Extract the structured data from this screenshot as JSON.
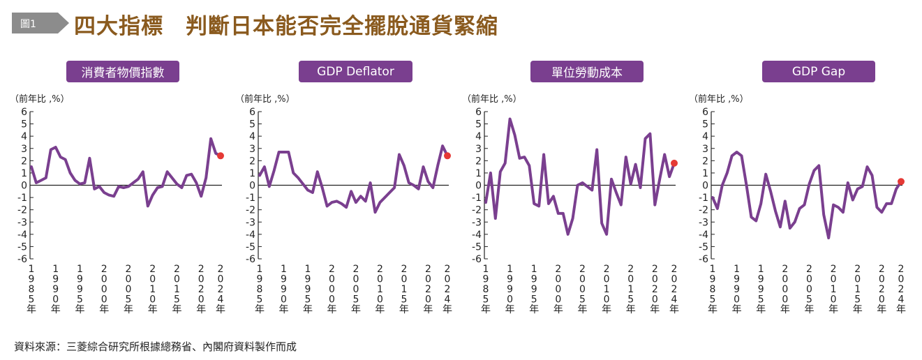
{
  "figure_label": "圖1",
  "headline": "四大指標　判斷日本能否完全擺脫通貨緊縮",
  "source": "資料來源：三菱綜合研究所根據總務省、內閣府資料製作而成",
  "colors": {
    "line": "#7a3f8f",
    "accent": "#e53935",
    "headline": "#8a5a1e",
    "tag": "#8c8c8c"
  },
  "chart_data": [
    {
      "type": "line",
      "title": "消費者物價指數",
      "unit_label": "（前年比 ,%）",
      "ylim": [
        -6,
        6
      ],
      "yticks": [
        "6",
        "5",
        "4",
        "3",
        "2",
        "1",
        "0",
        "-1",
        "-2",
        "-3",
        "-4",
        "-5",
        "-6"
      ],
      "xlim": [
        1985,
        2024
      ],
      "xtick_labels": [
        "1985年",
        "1990年",
        "1995年",
        "2000年",
        "2005年",
        "2010年",
        "2015年",
        "2020年",
        "2024年"
      ],
      "xtick_values": [
        1985,
        1990,
        1995,
        2000,
        2005,
        2010,
        2015,
        2020,
        2024
      ],
      "x": [
        1985,
        1986,
        1987,
        1988,
        1989,
        1990,
        1991,
        1992,
        1993,
        1994,
        1995,
        1996,
        1997,
        1998,
        1999,
        2000,
        2001,
        2002,
        2003,
        2004,
        2005,
        2006,
        2007,
        2008,
        2009,
        2010,
        2011,
        2012,
        2013,
        2014,
        2015,
        2016,
        2017,
        2018,
        2019,
        2020,
        2021,
        2022,
        2023,
        2024
      ],
      "y": [
        1.5,
        0.2,
        0.4,
        0.6,
        2.9,
        3.1,
        2.3,
        2.1,
        1.0,
        0.4,
        0.1,
        0.2,
        2.2,
        -0.3,
        -0.1,
        -0.6,
        -0.8,
        -0.9,
        -0.1,
        -0.2,
        -0.1,
        0.2,
        0.5,
        1.1,
        -1.7,
        -0.8,
        -0.2,
        -0.1,
        1.1,
        0.6,
        0.1,
        -0.2,
        0.8,
        0.9,
        0.2,
        -0.9,
        0.6,
        3.8,
        2.6,
        2.4
      ],
      "highlight": {
        "x": 2024,
        "y": 2.4
      }
    },
    {
      "type": "line",
      "title": "GDP Deflator",
      "unit_label": "（前年比 ,%）",
      "ylim": [
        -6,
        6
      ],
      "yticks": [
        "6",
        "5",
        "4",
        "3",
        "2",
        "1",
        "0",
        "-1",
        "-2",
        "-3",
        "-4",
        "-5",
        "-6"
      ],
      "xlim": [
        1985,
        2024
      ],
      "xtick_labels": [
        "1985年",
        "1990年",
        "1995年",
        "2000年",
        "2005年",
        "2010年",
        "2015年",
        "2020年",
        "2024年"
      ],
      "xtick_values": [
        1985,
        1990,
        1995,
        2000,
        2005,
        2010,
        2015,
        2020,
        2024
      ],
      "x": [
        1985,
        1986,
        1987,
        1988,
        1989,
        1990,
        1991,
        1992,
        1993,
        1994,
        1995,
        1996,
        1997,
        1998,
        1999,
        2000,
        2001,
        2002,
        2003,
        2004,
        2005,
        2006,
        2007,
        2008,
        2009,
        2010,
        2011,
        2012,
        2013,
        2014,
        2015,
        2016,
        2017,
        2018,
        2019,
        2020,
        2021,
        2022,
        2023,
        2024
      ],
      "y": [
        0.8,
        1.5,
        -0.1,
        1.2,
        2.7,
        2.7,
        2.7,
        1.0,
        0.6,
        0.1,
        -0.4,
        -0.6,
        1.1,
        -0.2,
        -1.7,
        -1.4,
        -1.3,
        -1.5,
        -1.8,
        -0.5,
        -1.4,
        -0.9,
        -1.3,
        0.2,
        -2.2,
        -1.4,
        -1.0,
        -0.6,
        -0.2,
        2.5,
        1.6,
        0.2,
        0.0,
        -0.3,
        1.5,
        0.3,
        -0.2,
        1.6,
        3.2,
        2.4
      ],
      "highlight": {
        "x": 2024,
        "y": 2.4
      }
    },
    {
      "type": "line",
      "title": "單位勞動成本",
      "unit_label": "（前年比 ,%）",
      "ylim": [
        -6,
        6
      ],
      "yticks": [
        "6",
        "5",
        "4",
        "3",
        "2",
        "1",
        "0",
        "-1",
        "-2",
        "-3",
        "-4",
        "-5",
        "-6"
      ],
      "xlim": [
        1985,
        2024
      ],
      "xtick_labels": [
        "1985年",
        "1990年",
        "1995年",
        "2000年",
        "2005年",
        "2010年",
        "2015年",
        "2020年",
        "2024年"
      ],
      "xtick_values": [
        1985,
        1990,
        1995,
        2000,
        2005,
        2010,
        2015,
        2020,
        2024
      ],
      "x": [
        1985,
        1986,
        1987,
        1988,
        1989,
        1990,
        1991,
        1992,
        1993,
        1994,
        1995,
        1996,
        1997,
        1998,
        1999,
        2000,
        2001,
        2002,
        2003,
        2004,
        2005,
        2006,
        2007,
        2008,
        2009,
        2010,
        2011,
        2012,
        2013,
        2014,
        2015,
        2016,
        2017,
        2018,
        2019,
        2020,
        2021,
        2022,
        2023,
        2024
      ],
      "y": [
        -1.4,
        1.0,
        -2.7,
        1.1,
        1.8,
        5.4,
        4.1,
        2.2,
        2.3,
        1.6,
        -1.5,
        -1.7,
        2.5,
        -1.5,
        -0.9,
        -2.3,
        -2.3,
        -4.0,
        -2.7,
        0.0,
        0.2,
        -0.1,
        -0.4,
        2.9,
        -3.1,
        -4.0,
        0.5,
        -0.6,
        -1.6,
        2.3,
        0.1,
        1.7,
        -0.2,
        3.8,
        4.2,
        -1.6,
        0.5,
        2.5,
        0.7,
        1.8
      ],
      "highlight": {
        "x": 2024,
        "y": 1.8
      }
    },
    {
      "type": "line",
      "title": "GDP Gap",
      "unit_label": "（前年比 ,%）",
      "ylim": [
        -6,
        6
      ],
      "yticks": [
        "6",
        "5",
        "4",
        "3",
        "2",
        "1",
        "0",
        "-1",
        "-2",
        "-3",
        "-4",
        "-5",
        "-6"
      ],
      "xlim": [
        1985,
        2024
      ],
      "xtick_labels": [
        "1985年",
        "1990年",
        "1995年",
        "2000年",
        "2005年",
        "2010年",
        "2015年",
        "2020年",
        "2024年"
      ],
      "xtick_values": [
        1985,
        1990,
        1995,
        2000,
        2005,
        2010,
        2015,
        2020,
        2024
      ],
      "x": [
        1985,
        1986,
        1987,
        1988,
        1989,
        1990,
        1991,
        1992,
        1993,
        1994,
        1995,
        1996,
        1997,
        1998,
        1999,
        2000,
        2001,
        2002,
        2003,
        2004,
        2005,
        2006,
        2007,
        2008,
        2009,
        2010,
        2011,
        2012,
        2013,
        2014,
        2015,
        2016,
        2017,
        2018,
        2019,
        2020,
        2021,
        2022,
        2023,
        2024
      ],
      "y": [
        -1.0,
        -1.9,
        0.0,
        1.0,
        2.4,
        2.7,
        2.4,
        0.0,
        -2.6,
        -2.9,
        -1.5,
        0.9,
        -0.5,
        -2.1,
        -3.4,
        -1.3,
        -3.5,
        -3.0,
        -1.9,
        -1.6,
        0.1,
        1.2,
        1.6,
        -2.4,
        -4.3,
        -1.6,
        -1.8,
        -2.2,
        0.2,
        -1.2,
        -0.3,
        -0.1,
        1.5,
        0.8,
        -1.8,
        -2.2,
        -1.5,
        -1.5,
        -0.3,
        0.3
      ],
      "highlight": {
        "x": 2024,
        "y": 0.3
      }
    }
  ]
}
